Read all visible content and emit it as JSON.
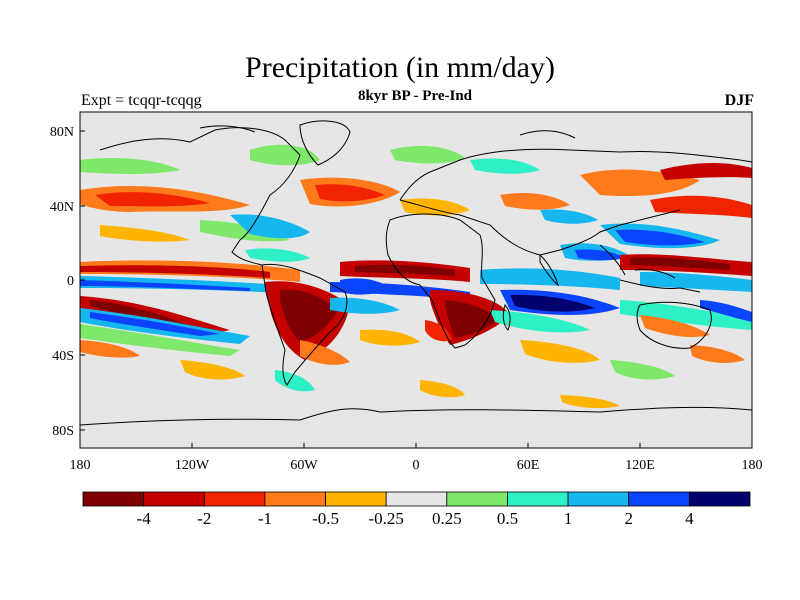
{
  "figure": {
    "title": "Precipitation (in mm/day)",
    "left_label": "Expt = tcqqr-tcqqg",
    "center_label": "8kyr BP - Pre-Ind",
    "right_label": "DJF"
  },
  "axes": {
    "x_ticks": [
      "180",
      "120W",
      "60W",
      "0",
      "60E",
      "120E",
      "180"
    ],
    "y_ticks": [
      "80N",
      "40N",
      "0",
      "40S",
      "80S"
    ]
  },
  "colorbar": {
    "labels": [
      "-4",
      "-2",
      "-1",
      "-0.5",
      "-0.25",
      "0.25",
      "0.5",
      "1",
      "2",
      "4"
    ],
    "colors": [
      "#7f0000",
      "#c40000",
      "#f22400",
      "#ff7a1a",
      "#ffb400",
      "#e6e6e6",
      "#7fe86a",
      "#2ef0c6",
      "#16b6ee",
      "#0a44ff",
      "#00006e"
    ]
  },
  "colors": {
    "land_ocean_background": "#e6e6e6",
    "coastline": "#000000"
  }
}
